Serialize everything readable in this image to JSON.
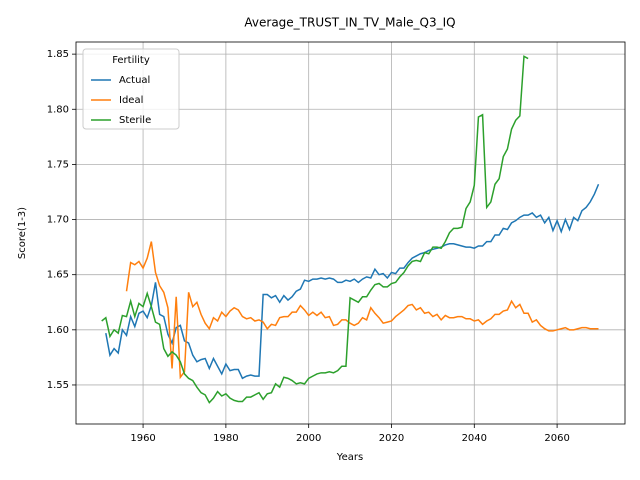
{
  "chart_data": {
    "type": "line",
    "title": "Average_TRUST_IN_TV_Male_Q3_IQ",
    "x_label": "Years",
    "y_label": "Score(1-3)",
    "legend_title": "Fertility",
    "legend": "upper left",
    "grid": true,
    "x": [
      1950,
      1951,
      1952,
      1953,
      1954,
      1955,
      1956,
      1957,
      1958,
      1959,
      1960,
      1961,
      1962,
      1963,
      1964,
      1965,
      1966,
      1967,
      1968,
      1969,
      1970,
      1971,
      1972,
      1973,
      1974,
      1975,
      1976,
      1977,
      1978,
      1979,
      1980,
      1981,
      1982,
      1983,
      1984,
      1985,
      1986,
      1987,
      1988,
      1989,
      1990,
      1991,
      1992,
      1993,
      1994,
      1995,
      1996,
      1997,
      1998,
      1999,
      2000,
      2001,
      2002,
      2003,
      2004,
      2005,
      2006,
      2007,
      2008,
      2009,
      2010,
      2011,
      2012,
      2013,
      2014,
      2015,
      2016,
      2017,
      2018,
      2019,
      2020,
      2021,
      2022,
      2023,
      2024,
      2025,
      2026,
      2027,
      2028,
      2029,
      2030,
      2031,
      2032,
      2033,
      2034,
      2035,
      2036,
      2037,
      2038,
      2039,
      2040,
      2041,
      2042,
      2043,
      2044,
      2045,
      2046,
      2047,
      2048,
      2049,
      2050,
      2051,
      2052,
      2053,
      2054,
      2055,
      2056,
      2057,
      2058,
      2059,
      2060,
      2061,
      2062,
      2063,
      2064,
      2065,
      2066,
      2067,
      2068,
      2069,
      2070
    ],
    "series": [
      {
        "name": "Actual",
        "color": "#1f77b4",
        "values": [
          null,
          1.597,
          1.577,
          1.583,
          1.579,
          1.6,
          1.595,
          1.612,
          1.603,
          1.615,
          1.617,
          1.611,
          1.622,
          1.643,
          1.614,
          1.612,
          1.596,
          1.588,
          1.602,
          1.604,
          1.59,
          1.588,
          1.577,
          1.571,
          1.573,
          1.574,
          1.565,
          1.574,
          1.567,
          1.56,
          1.569,
          1.563,
          1.564,
          1.564,
          1.556,
          1.558,
          1.559,
          1.558,
          1.558,
          1.632,
          1.632,
          1.629,
          1.631,
          1.625,
          1.631,
          1.627,
          1.63,
          1.635,
          1.637,
          1.645,
          1.644,
          1.646,
          1.646,
          1.647,
          1.646,
          1.647,
          1.646,
          1.643,
          1.643,
          1.645,
          1.644,
          1.646,
          1.643,
          1.646,
          1.648,
          1.647,
          1.655,
          1.65,
          1.651,
          1.647,
          1.652,
          1.651,
          1.656,
          1.656,
          1.661,
          1.665,
          1.667,
          1.669,
          1.67,
          1.672,
          1.673,
          1.674,
          1.675,
          1.677,
          1.678,
          1.678,
          1.677,
          1.676,
          1.675,
          1.675,
          1.674,
          1.676,
          1.676,
          1.68,
          1.68,
          1.686,
          1.686,
          1.692,
          1.691,
          1.697,
          1.699,
          1.702,
          1.704,
          1.704,
          1.706,
          1.702,
          1.704,
          1.697,
          1.702,
          1.69,
          1.699,
          1.689,
          1.7,
          1.691,
          1.702,
          1.699,
          1.708,
          1.711,
          1.716,
          1.723,
          1.732
        ]
      },
      {
        "name": "Ideal",
        "color": "#ff7f0e",
        "values": [
          null,
          null,
          null,
          null,
          null,
          null,
          1.635,
          1.661,
          1.659,
          1.662,
          1.656,
          1.665,
          1.68,
          1.652,
          1.64,
          1.634,
          1.62,
          1.565,
          1.63,
          1.557,
          1.562,
          1.634,
          1.621,
          1.625,
          1.614,
          1.606,
          1.601,
          1.611,
          1.608,
          1.616,
          1.612,
          1.617,
          1.62,
          1.618,
          1.612,
          1.61,
          1.611,
          1.608,
          1.609,
          1.607,
          1.601,
          1.605,
          1.604,
          1.611,
          1.612,
          1.612,
          1.616,
          1.616,
          1.622,
          1.618,
          1.613,
          1.616,
          1.613,
          1.616,
          1.611,
          1.612,
          1.604,
          1.605,
          1.609,
          1.609,
          1.606,
          1.604,
          1.606,
          1.611,
          1.609,
          1.62,
          1.615,
          1.611,
          1.606,
          1.607,
          1.608,
          1.612,
          1.615,
          1.618,
          1.622,
          1.623,
          1.618,
          1.62,
          1.615,
          1.616,
          1.612,
          1.614,
          1.609,
          1.613,
          1.611,
          1.611,
          1.612,
          1.612,
          1.61,
          1.61,
          1.608,
          1.609,
          1.605,
          1.608,
          1.61,
          1.614,
          1.614,
          1.617,
          1.618,
          1.626,
          1.62,
          1.623,
          1.615,
          1.615,
          1.607,
          1.609,
          1.604,
          1.601,
          1.599,
          1.599,
          1.6,
          1.601,
          1.602,
          1.6,
          1.6,
          1.601,
          1.602,
          1.602,
          1.601,
          1.601,
          1.601
        ]
      },
      {
        "name": "Sterile",
        "color": "#2ca02c",
        "values": [
          1.608,
          1.611,
          1.594,
          1.6,
          1.597,
          1.613,
          1.612,
          1.626,
          1.612,
          1.624,
          1.621,
          1.633,
          1.621,
          1.607,
          1.605,
          1.583,
          1.576,
          1.58,
          1.577,
          1.571,
          1.56,
          1.556,
          1.554,
          1.548,
          1.543,
          1.541,
          1.534,
          1.538,
          1.544,
          1.54,
          1.542,
          1.538,
          1.536,
          1.535,
          1.535,
          1.539,
          1.539,
          1.541,
          1.543,
          1.537,
          1.542,
          1.543,
          1.551,
          1.548,
          1.557,
          1.556,
          1.554,
          1.551,
          1.552,
          1.551,
          1.556,
          1.558,
          1.56,
          1.561,
          1.561,
          1.562,
          1.561,
          1.563,
          1.567,
          1.567,
          1.629,
          1.627,
          1.625,
          1.63,
          1.63,
          1.636,
          1.641,
          1.642,
          1.639,
          1.639,
          1.642,
          1.643,
          1.648,
          1.652,
          1.658,
          1.662,
          1.663,
          1.662,
          1.67,
          1.669,
          1.675,
          1.675,
          1.674,
          1.68,
          1.688,
          1.692,
          1.692,
          1.693,
          1.71,
          1.716,
          1.731,
          1.793,
          1.795,
          1.711,
          1.716,
          1.732,
          1.737,
          1.757,
          1.764,
          1.782,
          1.79,
          1.794,
          1.848,
          1.846,
          null,
          null,
          null,
          null,
          null,
          null,
          null,
          null,
          null,
          null,
          null,
          null,
          null,
          null,
          null,
          null,
          null
        ]
      }
    ],
    "xlim": [
      1943.8,
      2076.4
    ],
    "xticks": [
      1960,
      1980,
      2000,
      2020,
      2040,
      2060
    ],
    "ylim": [
      1.5146,
      1.861
    ],
    "yticks": [
      1.55,
      {
        "value": 1.6,
        "label": "1.60"
      },
      1.65,
      {
        "value": 1.7,
        "label": "1.70"
      },
      1.75,
      {
        "value": 1.8,
        "label": "1.80"
      },
      1.85
    ]
  }
}
